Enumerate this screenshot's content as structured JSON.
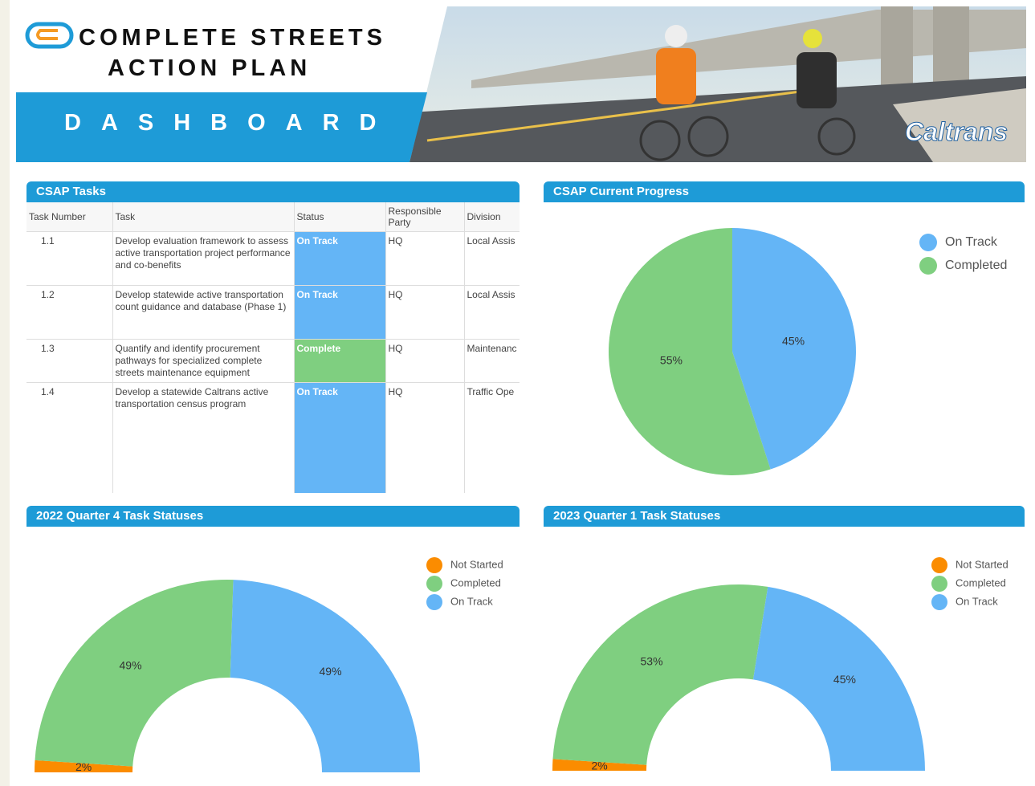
{
  "header": {
    "title_line1": "COMPLETE STREETS",
    "title_line2": "ACTION PLAN",
    "subtitle": "DASHBOARD",
    "brand": "Caltrans"
  },
  "table": {
    "title": "CSAP Tasks",
    "columns": [
      "Task Number",
      "Task",
      "Status",
      "Responsible Party",
      "Division"
    ],
    "rows": [
      {
        "number": "1.1",
        "task": "Develop evaluation framework to assess active transportation project performance and co-benefits",
        "status": "On Track",
        "status_color": "#64b5f6",
        "party": "HQ",
        "division": "Local Assis"
      },
      {
        "number": "1.2",
        "task": "Develop statewide active transportation count guidance and database (Phase 1)",
        "status": "On Track",
        "status_color": "#64b5f6",
        "party": "HQ",
        "division": "Local Assis"
      },
      {
        "number": "1.3",
        "task": "Quantify and identify procurement pathways for specialized complete streets maintenance equipment",
        "status": "Complete",
        "status_color": "#7fcf80",
        "party": "HQ",
        "division": "Maintenanc"
      },
      {
        "number": "1.4",
        "task": "Develop a statewide Caltrans active transportation census program",
        "status": "On Track",
        "status_color": "#64b5f6",
        "party": "HQ",
        "division": "Traffic Ope"
      }
    ]
  },
  "chart_data": [
    {
      "type": "pie",
      "title": "CSAP Current Progress",
      "categories": [
        "On Track",
        "Completed"
      ],
      "values": [
        45,
        55
      ],
      "value_labels": [
        "45%",
        "55%"
      ],
      "colors": [
        "#64b5f6",
        "#7fcf80"
      ],
      "legend": "top-right"
    },
    {
      "type": "half-donut",
      "title": "2022 Quarter 4 Task Statuses",
      "categories": [
        "Not Started",
        "Completed",
        "On Track"
      ],
      "values": [
        2,
        49,
        49
      ],
      "value_labels": [
        "2%",
        "49%",
        "49%"
      ],
      "colors": [
        "#fb8c00",
        "#7fcf80",
        "#64b5f6"
      ],
      "legend": "top-right"
    },
    {
      "type": "half-donut",
      "title": "2023 Quarter 1 Task Statuses",
      "categories": [
        "Not Started",
        "Completed",
        "On Track"
      ],
      "values": [
        2,
        53,
        45
      ],
      "value_labels": [
        "2%",
        "53%",
        "45%"
      ],
      "colors": [
        "#fb8c00",
        "#7fcf80",
        "#64b5f6"
      ],
      "legend": "top-right"
    }
  ]
}
